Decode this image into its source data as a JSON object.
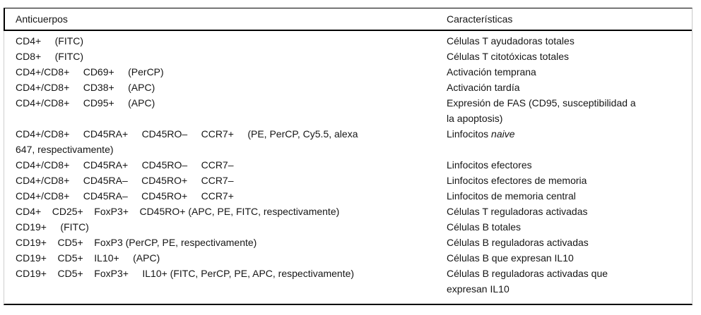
{
  "table": {
    "columns": [
      {
        "label": "Anticuerpos"
      },
      {
        "label": "Características"
      }
    ],
    "rows": [
      {
        "anticuerpo": "CD4+     (FITC)",
        "caracteristica": "Células T ayudadoras totales"
      },
      {
        "anticuerpo": "CD8+     (FITC)",
        "caracteristica": "Células T citotóxicas totales"
      },
      {
        "anticuerpo": "CD4+/CD8+     CD69+     (PerCP)",
        "caracteristica": "Activación temprana"
      },
      {
        "anticuerpo": "CD4+/CD8+     CD38+     (APC)",
        "caracteristica": "Activación tardía"
      },
      {
        "anticuerpo": "CD4+/CD8+     CD95+     (APC)",
        "caracteristica": "Expresión de FAS (CD95, susceptibilidad a\nla apoptosis)"
      },
      {
        "anticuerpo": "CD4+/CD8+     CD45RA+     CD45RO–     CCR7+     (PE, PerCP, Cy5.5, alexa\n647, respectivamente)",
        "caracteristica": "Linfocitos ",
        "caracteristica_italic": "naive"
      },
      {
        "anticuerpo": "CD4+/CD8+     CD45RA+     CD45RO–     CCR7–",
        "caracteristica": "Linfocitos efectores"
      },
      {
        "anticuerpo": "CD4+/CD8+     CD45RA–     CD45RO+     CCR7–",
        "caracteristica": "Linfocitos efectores de memoria"
      },
      {
        "anticuerpo": "CD4+/CD8+     CD45RA–     CD45RO+     CCR7+",
        "caracteristica": "Linfocitos de memoria central"
      },
      {
        "anticuerpo": "CD4+    CD25+    FoxP3+    CD45RO+ (APC, PE, FITC, respectivamente)",
        "caracteristica": "Células T reguladoras activadas"
      },
      {
        "anticuerpo": "CD19+     (FITC)",
        "caracteristica": "Células B totales"
      },
      {
        "anticuerpo": "CD19+    CD5+    FoxP3 (PerCP, PE, respectivamente)",
        "caracteristica": "Células B reguladoras activadas"
      },
      {
        "anticuerpo": "CD19+    CD5+    IL10+     (APC)",
        "caracteristica": "Células B que expresan IL10"
      },
      {
        "anticuerpo": "CD19+    CD5+    FoxP3+     IL10+ (FITC, PerCP, PE, APC, respectivamente)",
        "caracteristica": "Células B reguladoras activadas que\nexpresan IL10"
      }
    ]
  }
}
